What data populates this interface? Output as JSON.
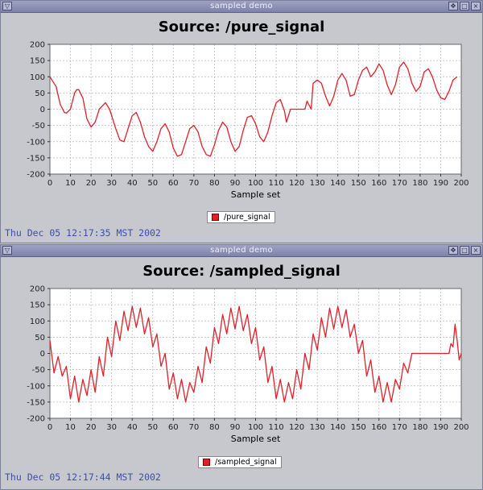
{
  "colors": {
    "series": "#e0202a",
    "timestamp": "#3d4fa8"
  },
  "windows": [
    {
      "window_title": "sampled demo",
      "plot_title": "Source: /pure_signal",
      "legend_label": "/pure_signal",
      "timestamp": "Thu Dec 05 12:17:35 MST 2002",
      "chart_data": {
        "type": "line",
        "title": "Source: /pure_signal",
        "xlabel": "Sample set",
        "ylabel": "",
        "xlim": [
          0,
          200
        ],
        "ylim": [
          -200,
          200
        ],
        "x_ticks": [
          0,
          10,
          20,
          30,
          40,
          50,
          60,
          70,
          80,
          90,
          100,
          110,
          120,
          130,
          140,
          150,
          160,
          170,
          180,
          190,
          200
        ],
        "y_ticks": [
          200,
          150,
          100,
          50,
          0,
          -50,
          -100,
          -150,
          -200
        ],
        "grid": true,
        "legend_position": "bottom",
        "series": [
          {
            "name": "/pure_signal",
            "points": [
              [
                0,
                100
              ],
              [
                3,
                70
              ],
              [
                5,
                15
              ],
              [
                7,
                -10
              ],
              [
                8,
                -12
              ],
              [
                10,
                0
              ],
              [
                12,
                50
              ],
              [
                13,
                60
              ],
              [
                14,
                60
              ],
              [
                16,
                35
              ],
              [
                18,
                -30
              ],
              [
                20,
                -55
              ],
              [
                22,
                -40
              ],
              [
                24,
                0
              ],
              [
                27,
                20
              ],
              [
                29,
                0
              ],
              [
                32,
                -60
              ],
              [
                34,
                -95
              ],
              [
                36,
                -100
              ],
              [
                38,
                -60
              ],
              [
                40,
                -20
              ],
              [
                42,
                -10
              ],
              [
                44,
                -40
              ],
              [
                46,
                -85
              ],
              [
                48,
                -115
              ],
              [
                50,
                -130
              ],
              [
                52,
                -100
              ],
              [
                54,
                -60
              ],
              [
                56,
                -45
              ],
              [
                58,
                -70
              ],
              [
                60,
                -120
              ],
              [
                62,
                -145
              ],
              [
                64,
                -140
              ],
              [
                66,
                -100
              ],
              [
                68,
                -60
              ],
              [
                70,
                -50
              ],
              [
                72,
                -70
              ],
              [
                74,
                -115
              ],
              [
                76,
                -140
              ],
              [
                78,
                -145
              ],
              [
                80,
                -110
              ],
              [
                82,
                -65
              ],
              [
                84,
                -40
              ],
              [
                86,
                -55
              ],
              [
                88,
                -100
              ],
              [
                90,
                -130
              ],
              [
                92,
                -115
              ],
              [
                94,
                -65
              ],
              [
                96,
                -25
              ],
              [
                98,
                -20
              ],
              [
                100,
                -45
              ],
              [
                102,
                -85
              ],
              [
                104,
                -100
              ],
              [
                106,
                -70
              ],
              [
                108,
                -20
              ],
              [
                110,
                20
              ],
              [
                112,
                30
              ],
              [
                114,
                -5
              ],
              [
                115,
                -40
              ],
              [
                117,
                0
              ],
              [
                124,
                0
              ],
              [
                125,
                25
              ],
              [
                127,
                0
              ],
              [
                128,
                80
              ],
              [
                130,
                90
              ],
              [
                132,
                80
              ],
              [
                134,
                40
              ],
              [
                136,
                10
              ],
              [
                138,
                40
              ],
              [
                140,
                90
              ],
              [
                142,
                110
              ],
              [
                144,
                90
              ],
              [
                146,
                40
              ],
              [
                148,
                45
              ],
              [
                150,
                90
              ],
              [
                152,
                120
              ],
              [
                154,
                130
              ],
              [
                156,
                100
              ],
              [
                158,
                115
              ],
              [
                160,
                140
              ],
              [
                162,
                120
              ],
              [
                164,
                75
              ],
              [
                166,
                45
              ],
              [
                168,
                75
              ],
              [
                170,
                130
              ],
              [
                172,
                145
              ],
              [
                174,
                125
              ],
              [
                176,
                80
              ],
              [
                178,
                55
              ],
              [
                180,
                70
              ],
              [
                182,
                115
              ],
              [
                184,
                125
              ],
              [
                186,
                100
              ],
              [
                188,
                60
              ],
              [
                190,
                35
              ],
              [
                192,
                30
              ],
              [
                194,
                55
              ],
              [
                196,
                90
              ],
              [
                198,
                100
              ]
            ]
          }
        ]
      }
    },
    {
      "window_title": "sampled demo",
      "plot_title": "Source: /sampled_signal",
      "legend_label": "/sampled_signal",
      "timestamp": "Thu Dec 05 12:17:44 MST 2002",
      "chart_data": {
        "type": "line",
        "title": "Source: /sampled_signal",
        "xlabel": "Sample set",
        "ylabel": "",
        "xlim": [
          0,
          200
        ],
        "ylim": [
          -200,
          200
        ],
        "x_ticks": [
          0,
          10,
          20,
          30,
          40,
          50,
          60,
          70,
          80,
          90,
          100,
          110,
          120,
          130,
          140,
          150,
          160,
          170,
          180,
          190,
          200
        ],
        "y_ticks": [
          200,
          150,
          100,
          50,
          0,
          -50,
          -100,
          -150,
          -200
        ],
        "grid": true,
        "legend_position": "bottom",
        "series": [
          {
            "name": "/sampled_signal",
            "points": [
              [
                0,
                40
              ],
              [
                2,
                -60
              ],
              [
                4,
                -10
              ],
              [
                6,
                -70
              ],
              [
                8,
                -40
              ],
              [
                10,
                -140
              ],
              [
                12,
                -70
              ],
              [
                14,
                -150
              ],
              [
                16,
                -80
              ],
              [
                18,
                -130
              ],
              [
                20,
                -50
              ],
              [
                22,
                -120
              ],
              [
                24,
                -10
              ],
              [
                26,
                -70
              ],
              [
                28,
                50
              ],
              [
                30,
                -10
              ],
              [
                32,
                100
              ],
              [
                34,
                40
              ],
              [
                36,
                130
              ],
              [
                38,
                70
              ],
              [
                40,
                145
              ],
              [
                42,
                80
              ],
              [
                44,
                140
              ],
              [
                46,
                60
              ],
              [
                48,
                110
              ],
              [
                50,
                20
              ],
              [
                52,
                60
              ],
              [
                54,
                -40
              ],
              [
                56,
                0
              ],
              [
                58,
                -110
              ],
              [
                60,
                -60
              ],
              [
                62,
                -140
              ],
              [
                64,
                -80
              ],
              [
                66,
                -150
              ],
              [
                68,
                -90
              ],
              [
                70,
                -120
              ],
              [
                72,
                -40
              ],
              [
                74,
                -90
              ],
              [
                76,
                20
              ],
              [
                78,
                -30
              ],
              [
                80,
                80
              ],
              [
                82,
                30
              ],
              [
                84,
                120
              ],
              [
                86,
                60
              ],
              [
                88,
                140
              ],
              [
                90,
                75
              ],
              [
                92,
                145
              ],
              [
                94,
                70
              ],
              [
                96,
                120
              ],
              [
                98,
                30
              ],
              [
                100,
                80
              ],
              [
                102,
                -20
              ],
              [
                104,
                20
              ],
              [
                106,
                -90
              ],
              [
                108,
                -40
              ],
              [
                110,
                -140
              ],
              [
                112,
                -80
              ],
              [
                114,
                -150
              ],
              [
                116,
                -90
              ],
              [
                118,
                -140
              ],
              [
                120,
                -50
              ],
              [
                122,
                -110
              ],
              [
                124,
                0
              ],
              [
                126,
                -50
              ],
              [
                128,
                60
              ],
              [
                130,
                10
              ],
              [
                132,
                110
              ],
              [
                134,
                50
              ],
              [
                136,
                140
              ],
              [
                138,
                75
              ],
              [
                140,
                145
              ],
              [
                142,
                80
              ],
              [
                144,
                135
              ],
              [
                146,
                50
              ],
              [
                148,
                90
              ],
              [
                150,
                0
              ],
              [
                152,
                40
              ],
              [
                154,
                -70
              ],
              [
                156,
                -20
              ],
              [
                158,
                -120
              ],
              [
                160,
                -70
              ],
              [
                162,
                -150
              ],
              [
                164,
                -90
              ],
              [
                166,
                -150
              ],
              [
                168,
                -80
              ],
              [
                170,
                -110
              ],
              [
                172,
                -30
              ],
              [
                174,
                -60
              ],
              [
                176,
                0
              ],
              [
                181,
                0
              ],
              [
                183,
                0
              ],
              [
                194,
                0
              ],
              [
                195,
                30
              ],
              [
                196,
                20
              ],
              [
                197,
                90
              ],
              [
                198,
                40
              ],
              [
                199,
                -20
              ],
              [
                200,
                0
              ]
            ]
          }
        ]
      }
    }
  ]
}
